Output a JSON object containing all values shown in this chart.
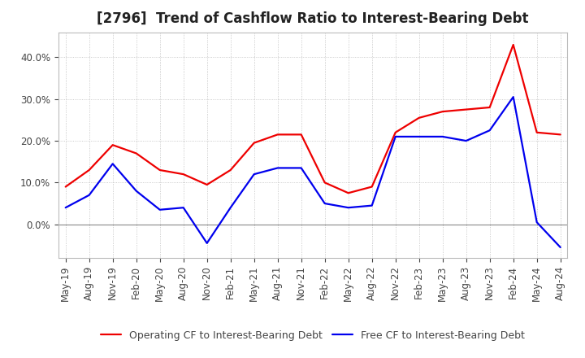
{
  "title": "[2796]  Trend of Cashflow Ratio to Interest-Bearing Debt",
  "x_labels": [
    "May-19",
    "Aug-19",
    "Nov-19",
    "Feb-20",
    "May-20",
    "Aug-20",
    "Nov-20",
    "Feb-21",
    "May-21",
    "Aug-21",
    "Nov-21",
    "Feb-22",
    "May-22",
    "Aug-22",
    "Nov-22",
    "Feb-23",
    "May-23",
    "Aug-23",
    "Nov-23",
    "Feb-24",
    "May-24",
    "Aug-24"
  ],
  "operating_cf": [
    9.0,
    13.0,
    19.0,
    17.0,
    13.0,
    12.0,
    9.5,
    13.0,
    19.5,
    21.5,
    21.5,
    10.0,
    7.5,
    9.0,
    22.0,
    25.5,
    27.0,
    27.5,
    28.0,
    43.0,
    22.0,
    21.5
  ],
  "free_cf": [
    4.0,
    7.0,
    14.5,
    8.0,
    3.5,
    4.0,
    -4.5,
    4.0,
    12.0,
    13.5,
    13.5,
    5.0,
    4.0,
    4.5,
    21.0,
    21.0,
    21.0,
    20.0,
    22.5,
    30.5,
    0.5,
    -5.5
  ],
  "operating_cf_color": "#EE0000",
  "free_cf_color": "#0000EE",
  "ylim_min": -8,
  "ylim_max": 46,
  "yticks": [
    0.0,
    10.0,
    20.0,
    30.0,
    40.0
  ],
  "background_color": "#FFFFFF",
  "plot_bg_color": "#FFFFFF",
  "grid_color": "#AAAAAA",
  "legend_operating": "Operating CF to Interest-Bearing Debt",
  "legend_free": "Free CF to Interest-Bearing Debt",
  "title_fontsize": 12,
  "title_color": "#222222",
  "axis_fontsize": 8.5,
  "tick_color": "#444444",
  "legend_fontsize": 9,
  "line_width": 1.6
}
